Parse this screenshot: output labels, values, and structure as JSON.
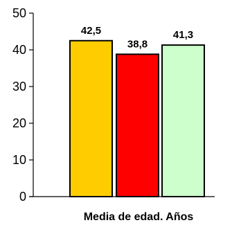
{
  "chart_data": {
    "type": "bar",
    "title": "",
    "xlabel": "Media de edad. Años",
    "ylabel": "",
    "ylim": [
      0,
      50
    ],
    "y_ticks": [
      0,
      10,
      20,
      30,
      40,
      50
    ],
    "categories": [
      "",
      "",
      ""
    ],
    "values": [
      42.5,
      38.8,
      41.3
    ],
    "data_labels": [
      "42,5",
      "38,8",
      "41,3"
    ],
    "colors": [
      "#FFCC00",
      "#FF0000",
      "#CCFFCC"
    ],
    "grid": false,
    "legend": "none"
  }
}
